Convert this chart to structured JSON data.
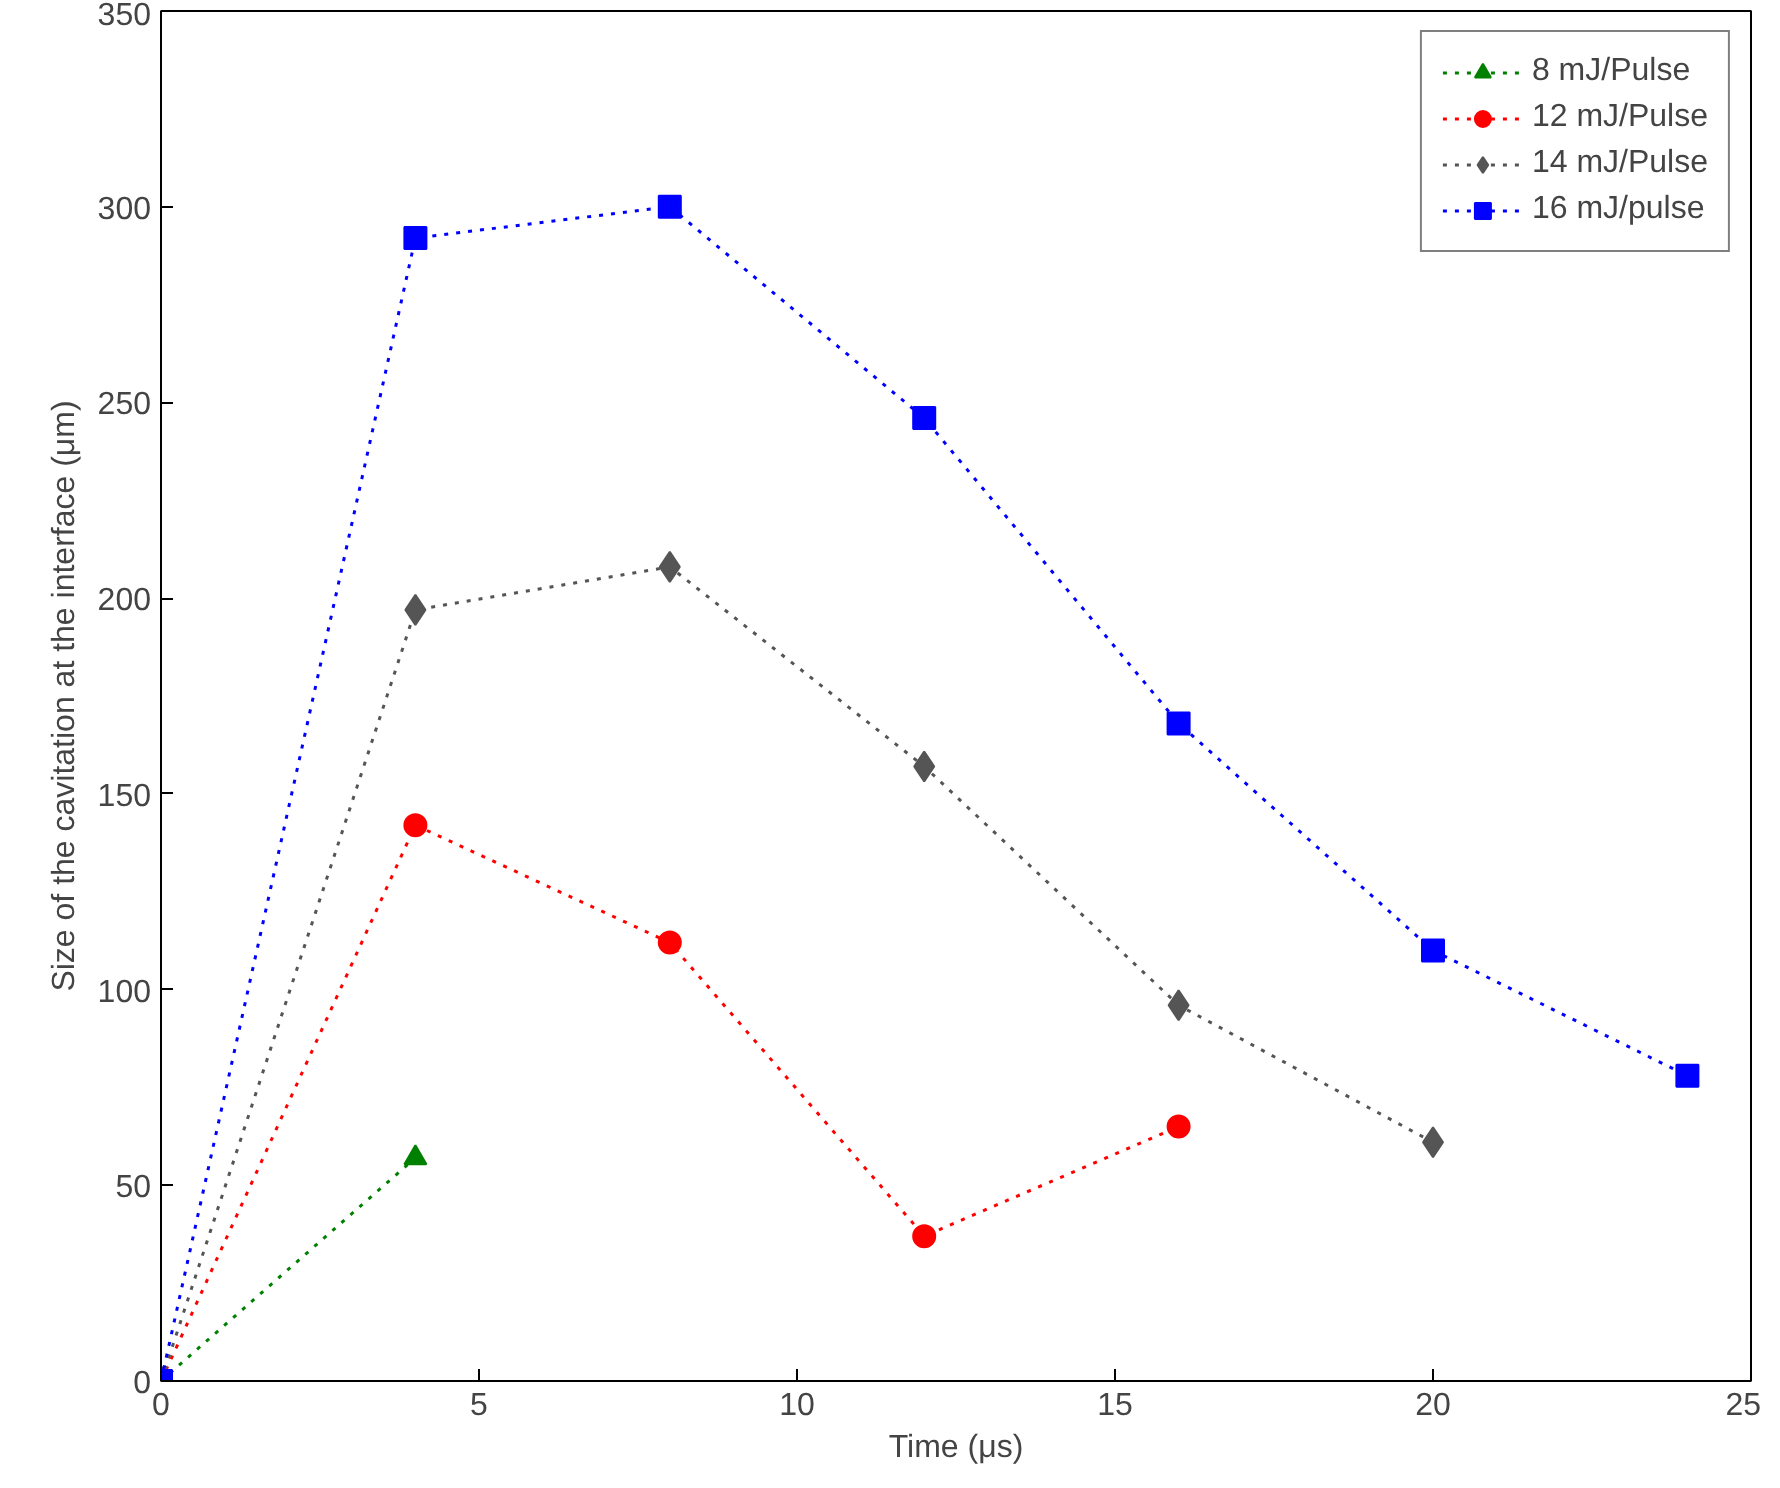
{
  "chart_data": {
    "type": "line",
    "xlabel": "Time (μs)",
    "ylabel": "Size of the cavitation at the interface (μm)",
    "xlim": [
      0,
      25
    ],
    "ylim": [
      0,
      350
    ],
    "xticks": [
      0,
      5,
      10,
      15,
      20,
      25
    ],
    "yticks": [
      0,
      50,
      100,
      150,
      200,
      250,
      300,
      350
    ],
    "grid": false,
    "legend": "top right",
    "line_style": "dotted",
    "series": [
      {
        "name": "8 mJ/Pulse",
        "color": "#008000",
        "marker": "triangle",
        "x": [
          0,
          4
        ],
        "values": [
          0,
          57
        ]
      },
      {
        "name": "12 mJ/Pulse",
        "color": "#ff0000",
        "marker": "circle",
        "x": [
          0,
          4,
          8,
          12,
          16
        ],
        "values": [
          0,
          142,
          112,
          37,
          65
        ]
      },
      {
        "name": "14 mJ/Pulse",
        "color": "#555555",
        "marker": "diamond",
        "x": [
          0,
          4,
          8,
          12,
          16,
          20
        ],
        "values": [
          0,
          197,
          208,
          157,
          96,
          61
        ]
      },
      {
        "name": "16 mJ/pulse",
        "color": "#0000ff",
        "marker": "square",
        "x": [
          0,
          4,
          8,
          12,
          16,
          20,
          24
        ],
        "values": [
          0,
          292,
          300,
          246,
          168,
          110,
          78
        ]
      }
    ]
  }
}
